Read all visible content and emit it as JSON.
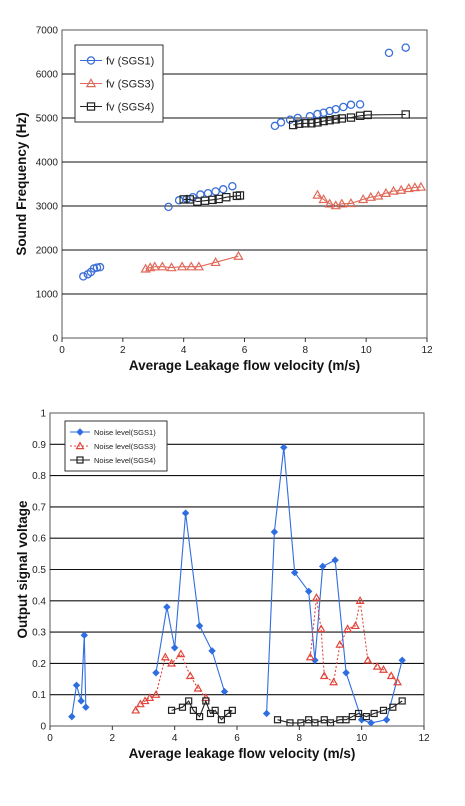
{
  "chart_data": [
    {
      "type": "scatter",
      "xlabel": "Average Leakage flow velocity  (m/s)",
      "ylabel": "Sound Frequency  (Hz)",
      "xlim": [
        0,
        12
      ],
      "ylim": [
        0,
        7000
      ],
      "xticks": [
        0,
        2,
        4,
        6,
        8,
        10,
        12
      ],
      "yticks": [
        0,
        1000,
        2000,
        3000,
        4000,
        5000,
        6000,
        7000
      ],
      "grid": "horizontal",
      "legend_position": "top-left",
      "series": [
        {
          "name": "fv (SGS1)",
          "color": "#3a6fd8",
          "marker": "circle",
          "line": false,
          "points": [
            [
              0.7,
              1400
            ],
            [
              0.85,
              1450
            ],
            [
              0.95,
              1500
            ],
            [
              1.05,
              1580
            ],
            [
              1.15,
              1600
            ],
            [
              1.25,
              1610
            ],
            [
              3.5,
              2980
            ],
            [
              3.85,
              3130
            ],
            [
              4.1,
              3160
            ],
            [
              4.3,
              3200
            ],
            [
              4.55,
              3260
            ],
            [
              4.8,
              3290
            ],
            [
              5.05,
              3330
            ],
            [
              5.3,
              3380
            ],
            [
              5.6,
              3450
            ],
            [
              7.0,
              4820
            ],
            [
              7.2,
              4900
            ],
            [
              7.5,
              4960
            ],
            [
              7.75,
              5000
            ],
            [
              8.15,
              5040
            ],
            [
              8.4,
              5090
            ],
            [
              8.6,
              5120
            ],
            [
              8.8,
              5160
            ],
            [
              9.0,
              5200
            ],
            [
              9.25,
              5250
            ],
            [
              9.5,
              5300
            ],
            [
              9.8,
              5310
            ],
            [
              10.75,
              6480
            ],
            [
              11.3,
              6600
            ]
          ]
        },
        {
          "name": "fv (SGS3)",
          "color": "#e06a5a",
          "marker": "triangle",
          "line": true,
          "segments": [
            [
              [
                2.75,
                1570
              ],
              [
                2.9,
                1600
              ],
              [
                3.05,
                1620
              ],
              [
                3.3,
                1620
              ],
              [
                3.6,
                1600
              ],
              [
                3.95,
                1620
              ],
              [
                4.25,
                1620
              ],
              [
                4.5,
                1620
              ],
              [
                5.05,
                1720
              ],
              [
                5.8,
                1860
              ]
            ],
            [
              [
                8.4,
                3250
              ],
              [
                8.6,
                3150
              ],
              [
                8.8,
                3050
              ],
              [
                9.0,
                3010
              ],
              [
                9.2,
                3050
              ],
              [
                9.5,
                3060
              ],
              [
                9.9,
                3150
              ],
              [
                10.15,
                3200
              ],
              [
                10.4,
                3230
              ],
              [
                10.65,
                3290
              ],
              [
                10.9,
                3340
              ],
              [
                11.15,
                3360
              ],
              [
                11.4,
                3400
              ],
              [
                11.6,
                3420
              ],
              [
                11.8,
                3430
              ]
            ]
          ]
        },
        {
          "name": "fv (SGS4)",
          "color": "#222222",
          "marker": "square",
          "line": true,
          "segments": [
            [
              [
                4.0,
                3150
              ],
              [
                4.2,
                3150
              ],
              [
                4.45,
                3100
              ],
              [
                4.7,
                3120
              ],
              [
                4.95,
                3140
              ],
              [
                5.15,
                3160
              ],
              [
                5.4,
                3200
              ],
              [
                5.75,
                3230
              ],
              [
                5.85,
                3240
              ]
            ],
            [
              [
                7.6,
                4840
              ],
              [
                7.8,
                4870
              ],
              [
                8.0,
                4880
              ],
              [
                8.2,
                4880
              ],
              [
                8.4,
                4900
              ],
              [
                8.6,
                4930
              ],
              [
                8.8,
                4950
              ],
              [
                9.0,
                4970
              ],
              [
                9.2,
                4990
              ],
              [
                9.5,
                5010
              ],
              [
                9.8,
                5050
              ],
              [
                10.05,
                5070
              ],
              [
                11.3,
                5080
              ]
            ]
          ]
        }
      ]
    },
    {
      "type": "line",
      "xlabel": "Average leakage flow velocity  (m/s)",
      "ylabel": "Output signal voltage",
      "xlim": [
        0,
        12
      ],
      "ylim": [
        0,
        1
      ],
      "xticks": [
        0,
        2,
        4,
        6,
        8,
        10,
        12
      ],
      "yticks": [
        0,
        0.1,
        0.2,
        0.3,
        0.4,
        0.5,
        0.6,
        0.7,
        0.8,
        0.9,
        1
      ],
      "grid": "horizontal",
      "legend_position": "top-left",
      "series": [
        {
          "name": "Noise level(SGS1)",
          "color": "#2f6ee0",
          "marker": "diamond",
          "dash": false,
          "segments": [
            [
              [
                0.7,
                0.03
              ],
              [
                0.85,
                0.13
              ],
              [
                1.0,
                0.08
              ],
              [
                1.1,
                0.29
              ],
              [
                1.15,
                0.06
              ]
            ],
            [
              [
                3.4,
                0.17
              ],
              [
                3.75,
                0.38
              ],
              [
                4.0,
                0.25
              ],
              [
                4.35,
                0.68
              ],
              [
                4.8,
                0.32
              ],
              [
                5.2,
                0.24
              ],
              [
                5.6,
                0.11
              ]
            ],
            [
              [
                6.95,
                0.04
              ],
              [
                7.2,
                0.62
              ],
              [
                7.5,
                0.89
              ],
              [
                7.85,
                0.49
              ],
              [
                8.3,
                0.43
              ],
              [
                8.5,
                0.21
              ],
              [
                8.75,
                0.51
              ],
              [
                9.15,
                0.53
              ],
              [
                9.5,
                0.17
              ],
              [
                10.0,
                0.02
              ],
              [
                10.3,
                0.01
              ],
              [
                10.8,
                0.02
              ],
              [
                11.3,
                0.21
              ]
            ]
          ]
        },
        {
          "name": "Noise level(SGS3)",
          "color": "#e0463c",
          "marker": "triangle",
          "dash": true,
          "segments": [
            [
              [
                2.75,
                0.05
              ],
              [
                2.9,
                0.07
              ],
              [
                3.05,
                0.08
              ],
              [
                3.2,
                0.09
              ],
              [
                3.4,
                0.1
              ],
              [
                3.7,
                0.22
              ],
              [
                3.9,
                0.2
              ],
              [
                4.2,
                0.23
              ],
              [
                4.5,
                0.16
              ],
              [
                4.75,
                0.12
              ],
              [
                5.0,
                0.09
              ]
            ],
            [
              [
                8.35,
                0.22
              ],
              [
                8.55,
                0.41
              ],
              [
                8.7,
                0.31
              ],
              [
                8.8,
                0.16
              ],
              [
                9.1,
                0.14
              ],
              [
                9.3,
                0.26
              ],
              [
                9.55,
                0.31
              ],
              [
                9.8,
                0.32
              ],
              [
                9.95,
                0.4
              ],
              [
                10.2,
                0.21
              ],
              [
                10.5,
                0.19
              ],
              [
                10.7,
                0.18
              ],
              [
                10.95,
                0.16
              ],
              [
                11.15,
                0.14
              ]
            ]
          ]
        },
        {
          "name": "Noise level(SGS4)",
          "color": "#222222",
          "marker": "square",
          "dash": false,
          "segments": [
            [
              [
                3.9,
                0.05
              ],
              [
                4.25,
                0.06
              ],
              [
                4.45,
                0.08
              ],
              [
                4.6,
                0.05
              ],
              [
                4.8,
                0.03
              ],
              [
                5.0,
                0.08
              ],
              [
                5.15,
                0.04
              ],
              [
                5.3,
                0.05
              ],
              [
                5.5,
                0.02
              ],
              [
                5.7,
                0.04
              ],
              [
                5.85,
                0.05
              ]
            ],
            [
              [
                7.3,
                0.02
              ],
              [
                7.7,
                0.01
              ],
              [
                8.05,
                0.01
              ],
              [
                8.3,
                0.02
              ],
              [
                8.5,
                0.01
              ],
              [
                8.8,
                0.02
              ],
              [
                9.0,
                0.01
              ],
              [
                9.3,
                0.02
              ],
              [
                9.5,
                0.02
              ],
              [
                9.7,
                0.03
              ],
              [
                9.9,
                0.04
              ],
              [
                10.15,
                0.03
              ],
              [
                10.4,
                0.04
              ],
              [
                10.7,
                0.05
              ],
              [
                11.0,
                0.06
              ],
              [
                11.3,
                0.08
              ]
            ]
          ]
        }
      ]
    }
  ]
}
